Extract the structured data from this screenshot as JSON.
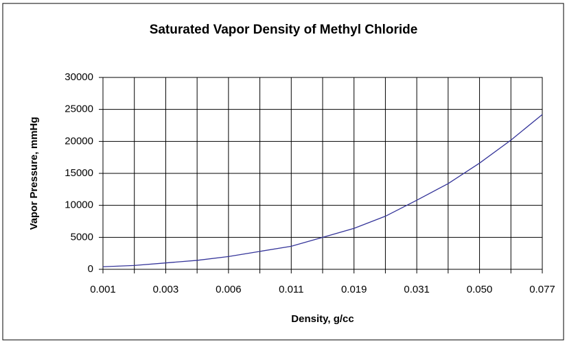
{
  "chart_data": {
    "type": "line",
    "title": "Saturated Vapor Density of Methyl Chloride",
    "x_label": "Density, g/cc",
    "y_label": "Vapor Pressure, mmHg",
    "categories": [
      "0.001",
      null,
      "0.003",
      null,
      "0.006",
      null,
      "0.011",
      null,
      "0.019",
      null,
      "0.031",
      null,
      "0.050",
      null,
      "0.077"
    ],
    "series": [
      {
        "name": "Vapor Pressure",
        "color": "#333399",
        "values": [
          400,
          600,
          1000,
          1400,
          2000,
          2800,
          3600,
          5000,
          6400,
          8300,
          10800,
          13400,
          16600,
          20200,
          24200
        ]
      }
    ],
    "ylim": [
      0,
      30000
    ],
    "yticks": [
      0,
      5000,
      10000,
      15000,
      20000,
      25000,
      30000
    ],
    "grid": true,
    "legend": false
  }
}
